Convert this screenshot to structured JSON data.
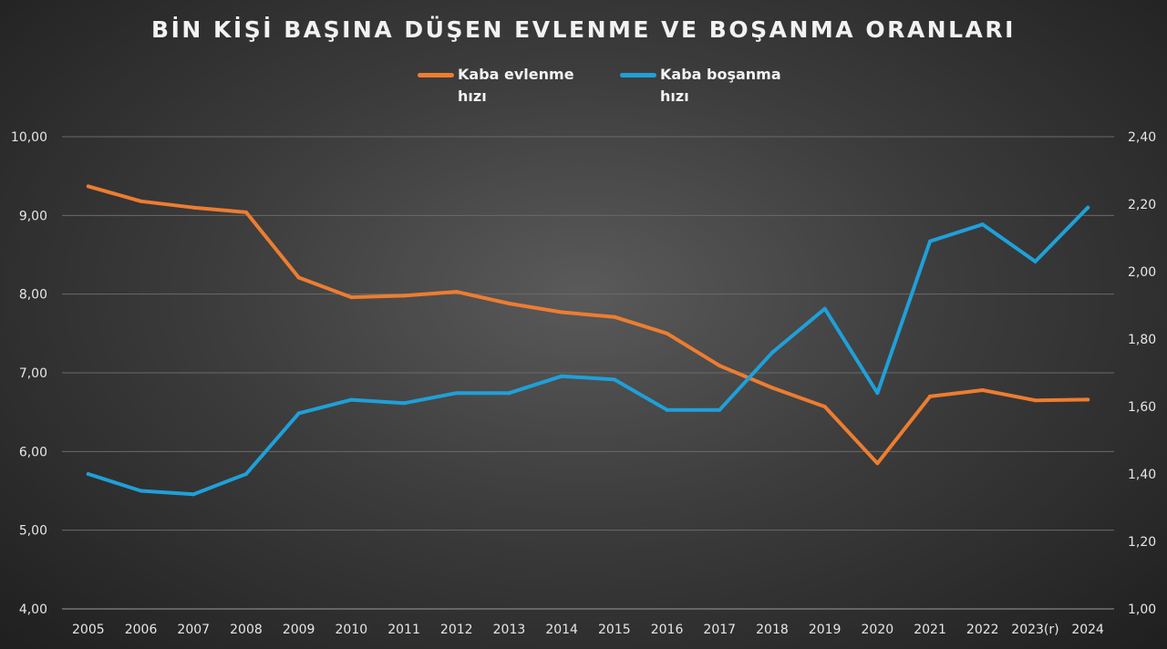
{
  "chart_data": {
    "type": "line",
    "title": "BİN KİŞİ BAŞINA DÜŞEN EVLENME VE BOŞANMA ORANLARI",
    "categories": [
      "2005",
      "2006",
      "2007",
      "2008",
      "2009",
      "2010",
      "2011",
      "2012",
      "2013",
      "2014",
      "2015",
      "2016",
      "2017",
      "2018",
      "2019",
      "2020",
      "2021",
      "2022",
      "2023(r)",
      "2024"
    ],
    "series": [
      {
        "name": "Kaba evlenme hızı",
        "axis": "left",
        "color": "#ed7d31",
        "values": [
          9.37,
          9.18,
          9.1,
          9.04,
          8.21,
          7.96,
          7.98,
          8.03,
          7.88,
          7.77,
          7.71,
          7.5,
          7.09,
          6.81,
          6.57,
          5.85,
          6.7,
          6.78,
          6.65,
          6.66
        ]
      },
      {
        "name": "Kaba boşanma hızı",
        "axis": "right",
        "color": "#1fa0d9",
        "values": [
          1.4,
          1.35,
          1.34,
          1.4,
          1.58,
          1.62,
          1.61,
          1.64,
          1.64,
          1.69,
          1.68,
          1.59,
          1.59,
          1.76,
          1.89,
          1.64,
          2.09,
          2.14,
          2.03,
          2.19
        ]
      }
    ],
    "y_left": {
      "ylim": [
        4,
        10
      ],
      "ticks": [
        "4,00",
        "5,00",
        "6,00",
        "7,00",
        "8,00",
        "9,00",
        "10,00"
      ]
    },
    "y_right": {
      "ylim": [
        1.0,
        2.4
      ],
      "ticks": [
        "1,00",
        "1,20",
        "1,40",
        "1,60",
        "1,80",
        "2,00",
        "2,20",
        "2,40"
      ]
    },
    "grid": true,
    "legend_position": "top-center",
    "legend": [
      {
        "line1": "Kaba evlenme",
        "line2": "hızı",
        "color": "#ed7d31"
      },
      {
        "line1": "Kaba boşanma",
        "line2": "hızı",
        "color": "#1fa0d9"
      }
    ]
  }
}
